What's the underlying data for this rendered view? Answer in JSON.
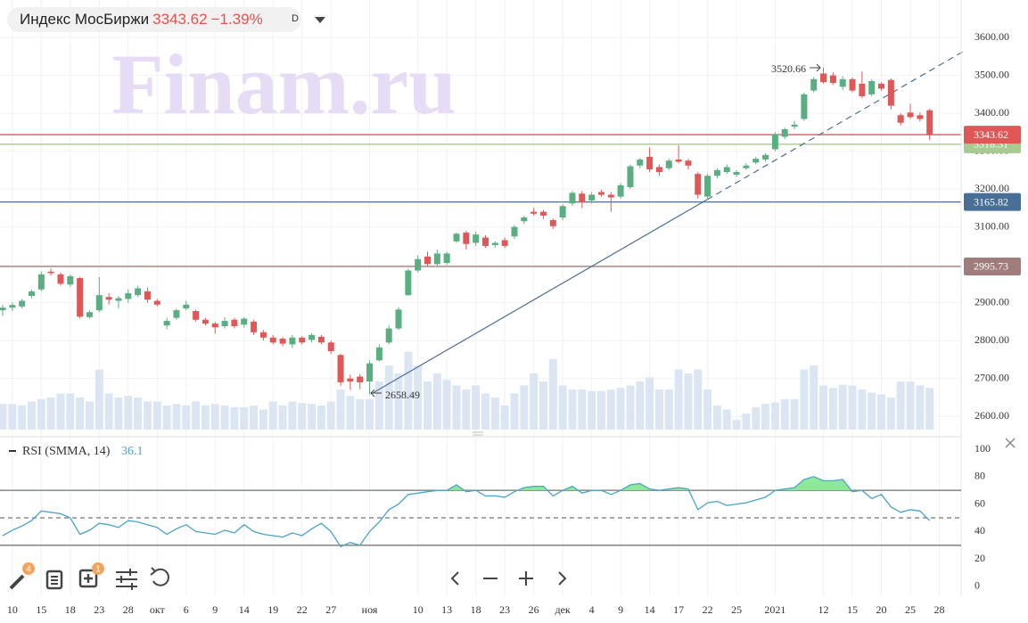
{
  "header": {
    "name": "Индекс МосБиржи",
    "change": "−1.39%",
    "interval": "D"
  },
  "toolbar": {
    "badges": [
      "4",
      "1"
    ]
  },
  "chart_data": {
    "type": "candlestick",
    "watermark": "Finam.ru",
    "up_color": "#5aae82",
    "down_color": "#e05757",
    "volume_color": "#dbe6f2",
    "ylim": [
      2551,
      3699
    ],
    "yticks": [
      {
        "value": 2600,
        "label": "2600.00"
      },
      {
        "value": 2700,
        "label": "2700.00"
      },
      {
        "value": 2800,
        "label": "2800.00"
      },
      {
        "value": 2900,
        "label": "2900.00"
      },
      {
        "value": 3000,
        "label": "3000.00"
      },
      {
        "value": 3100,
        "label": "3100.00"
      },
      {
        "value": 3200,
        "label": "3200.00"
      },
      {
        "value": 3300,
        "label": "3300.00"
      },
      {
        "value": 3400,
        "label": "3400.00"
      },
      {
        "value": 3500,
        "label": "3500.00"
      },
      {
        "value": 3600,
        "label": "3600.00"
      }
    ],
    "grid": true,
    "levels": [
      {
        "value": 2995.73,
        "color": "#a07c7c"
      },
      {
        "value": 3165.82,
        "color": "#4a6f96"
      },
      {
        "value": 3318.31,
        "color": "#a8c98f"
      },
      {
        "value": 3343.62,
        "color": "#e05757"
      }
    ],
    "categories": [
      null,
      "10",
      null,
      null,
      "15",
      null,
      null,
      "18",
      null,
      null,
      "23",
      null,
      null,
      "28",
      null,
      null,
      "окт",
      null,
      null,
      "6",
      null,
      null,
      "9",
      null,
      null,
      "14",
      null,
      null,
      "19",
      null,
      null,
      "22",
      null,
      null,
      "27",
      null,
      null,
      null,
      "ноя",
      null,
      null,
      null,
      null,
      "10",
      null,
      null,
      "13",
      null,
      null,
      "18",
      null,
      null,
      "23",
      null,
      null,
      "26",
      null,
      null,
      "дек",
      null,
      null,
      "4",
      null,
      null,
      "9",
      null,
      null,
      "14",
      null,
      null,
      "17",
      null,
      null,
      "22",
      null,
      null,
      "25",
      null,
      null,
      null,
      "2021",
      null,
      null,
      null,
      null,
      "12",
      null,
      null,
      "15",
      null,
      null,
      "20",
      null,
      null,
      "25",
      null,
      null,
      "28"
    ],
    "open": [
      2880,
      2887,
      2890,
      2918,
      2935,
      2982,
      2975,
      2948,
      2965,
      2862,
      2880,
      2915,
      2905,
      2910,
      2920,
      2930,
      2905,
      2840,
      2860,
      2885,
      2878,
      2855,
      2845,
      2838,
      2855,
      2842,
      2850,
      2822,
      2808,
      2805,
      2790,
      2808,
      2802,
      2810,
      2795,
      2762,
      2700,
      2705,
      2692,
      2748,
      2795,
      2832,
      2920,
      2985,
      3022,
      3002,
      3005,
      3062,
      3085,
      3058,
      3072,
      3052,
      3065,
      3075,
      3115,
      3140,
      3140,
      3118,
      3125,
      3162,
      3188,
      3170,
      3192,
      3185,
      3180,
      3205,
      3262,
      3285,
      3258,
      3255,
      3278,
      3275,
      3240,
      3180,
      3235,
      3245,
      3238,
      3255,
      3270,
      3278,
      3305,
      3338,
      3365,
      3385,
      3460,
      3505,
      3500,
      3470,
      3490,
      3478,
      3450,
      3478,
      3488,
      3395,
      3402,
      3395,
      3408,
      null
    ],
    "high": [
      2895,
      2900,
      2910,
      2935,
      2982,
      2990,
      2980,
      2975,
      2968,
      2880,
      2968,
      2925,
      2918,
      2935,
      2945,
      2940,
      2910,
      2860,
      2885,
      2905,
      2882,
      2860,
      2850,
      2862,
      2860,
      2862,
      2855,
      2828,
      2815,
      2810,
      2815,
      2812,
      2820,
      2815,
      2800,
      2765,
      2710,
      2712,
      2748,
      2790,
      2840,
      2888,
      2990,
      3025,
      3035,
      3040,
      3035,
      3085,
      3090,
      3088,
      3078,
      3062,
      3072,
      3105,
      3130,
      3150,
      3145,
      3122,
      3160,
      3195,
      3195,
      3192,
      3198,
      3192,
      3215,
      3265,
      3282,
      3310,
      3265,
      3280,
      3315,
      3280,
      3245,
      3240,
      3255,
      3265,
      3250,
      3268,
      3285,
      3295,
      3350,
      3362,
      3380,
      3455,
      3495,
      3520.66,
      3508,
      3498,
      3495,
      3510,
      3490,
      3482,
      3492,
      3400,
      3425,
      3402,
      3412,
      null
    ],
    "low": [
      2865,
      2878,
      2885,
      2912,
      2930,
      2972,
      2945,
      2942,
      2858,
      2858,
      2875,
      2895,
      2885,
      2900,
      2915,
      2900,
      2890,
      2830,
      2855,
      2880,
      2850,
      2840,
      2818,
      2832,
      2832,
      2835,
      2815,
      2800,
      2790,
      2785,
      2780,
      2790,
      2795,
      2790,
      2765,
      2680,
      2670,
      2672,
      2658.49,
      2745,
      2790,
      2828,
      2918,
      2980,
      2995,
      2998,
      3000,
      3058,
      3040,
      3050,
      3045,
      3045,
      3045,
      3068,
      3108,
      3130,
      3122,
      3095,
      3118,
      3155,
      3150,
      3162,
      3180,
      3140,
      3175,
      3200,
      3255,
      3245,
      3235,
      3250,
      3268,
      3252,
      3175,
      3172,
      3228,
      3240,
      3232,
      3250,
      3265,
      3272,
      3300,
      3332,
      3358,
      3380,
      3455,
      3478,
      3475,
      3462,
      3455,
      3440,
      3445,
      3460,
      3410,
      3368,
      3385,
      3378,
      3330,
      null
    ],
    "close": [
      2887,
      2894,
      2905,
      2930,
      2975,
      2978,
      2950,
      2970,
      2863,
      2875,
      2920,
      2908,
      2912,
      2925,
      2938,
      2908,
      2895,
      2852,
      2880,
      2895,
      2855,
      2845,
      2835,
      2852,
      2838,
      2858,
      2822,
      2808,
      2795,
      2792,
      2808,
      2795,
      2815,
      2795,
      2772,
      2690,
      2692,
      2690,
      2740,
      2782,
      2832,
      2882,
      2985,
      3015,
      3002,
      3030,
      3030,
      3082,
      3055,
      3080,
      3050,
      3058,
      3050,
      3100,
      3125,
      3135,
      3130,
      3102,
      3155,
      3190,
      3165,
      3185,
      3185,
      3178,
      3210,
      3260,
      3278,
      3252,
      3245,
      3275,
      3272,
      3262,
      3185,
      3235,
      3250,
      3258,
      3245,
      3262,
      3280,
      3290,
      3345,
      3358,
      3370,
      3450,
      3490,
      3482,
      3480,
      3490,
      3460,
      3445,
      3485,
      3465,
      3420,
      3375,
      3390,
      3385,
      3343.62,
      null
    ],
    "volume": [
      32,
      32,
      30,
      35,
      38,
      40,
      45,
      45,
      40,
      35,
      75,
      45,
      40,
      42,
      40,
      35,
      35,
      30,
      32,
      30,
      35,
      30,
      32,
      30,
      28,
      28,
      30,
      25,
      35,
      30,
      35,
      33,
      32,
      30,
      35,
      50,
      42,
      38,
      38,
      60,
      80,
      70,
      97,
      80,
      60,
      70,
      62,
      55,
      50,
      55,
      45,
      40,
      30,
      45,
      55,
      70,
      60,
      88,
      55,
      50,
      50,
      48,
      48,
      50,
      52,
      55,
      60,
      65,
      50,
      50,
      75,
      70,
      75,
      50,
      30,
      25,
      12,
      20,
      28,
      32,
      34,
      38,
      38,
      75,
      80,
      55,
      52,
      56,
      55,
      50,
      46,
      44,
      40,
      60,
      60,
      55,
      52,
      null
    ],
    "rsi": {
      "title": "RSI (SMMA, 14)",
      "current": 36.1,
      "color": "#4aa3c8",
      "fill_color": "#8ee89a",
      "ylim": [
        -6.5,
        107.8
      ],
      "yticks": [
        0,
        20,
        40,
        60,
        80,
        100
      ],
      "levels": [
        {
          "value": 70,
          "style": "solid"
        },
        {
          "value": 50,
          "style": "dashed"
        },
        {
          "value": 30,
          "style": "solid"
        }
      ],
      "values": [
        37,
        41,
        44,
        48,
        55,
        54,
        53,
        50,
        38,
        41,
        46,
        45,
        43,
        48,
        47,
        45,
        43,
        38,
        42,
        45,
        40,
        39,
        38,
        41,
        39,
        45,
        40,
        38,
        37,
        36,
        39,
        37,
        42,
        46,
        40,
        29,
        32,
        30,
        40,
        47,
        56,
        60,
        67,
        68,
        69,
        70,
        70,
        74,
        69,
        70,
        66,
        66,
        65,
        69,
        72,
        73,
        73,
        66,
        70,
        73,
        68,
        70,
        70,
        67,
        70,
        74,
        75,
        71,
        70,
        71,
        72,
        71,
        56,
        61,
        62,
        59,
        60,
        61,
        63,
        65,
        70,
        71,
        72,
        78,
        80,
        77,
        77,
        78,
        69,
        70,
        64,
        67,
        58,
        54,
        56,
        55,
        48,
        null
      ]
    }
  }
}
